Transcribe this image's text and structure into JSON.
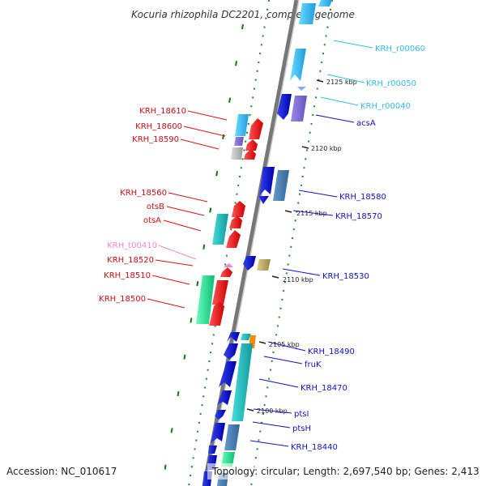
{
  "title": "Kocuria rhizophila DC2201, complete genome",
  "accession": "Accession: NC_010617",
  "summary": "Topology: circular; Length: 2,697,540 bp; Genes: 2,413",
  "colors": {
    "red": "#ee1111",
    "blue": "#1111cc",
    "cyan": "#33bbee",
    "pink": "#ee88cc",
    "backbone": "#888888",
    "dots": "#228822"
  },
  "ticks": [
    "2125 kbp",
    "2120 kbp",
    "2115 kbp",
    "2110 kbp",
    "2105 kbp",
    "2100 kbp"
  ],
  "left_labels": [
    "KRH_18610",
    "KRH_18600",
    "KRH_18590",
    "KRH_18560",
    "otsB",
    "otsA",
    "KRH_t00410",
    "KRH_18520",
    "KRH_18510",
    "KRH_18500"
  ],
  "right_labels": [
    "KRH_r00060",
    "KRH_r00050",
    "KRH_r00040",
    "acsA",
    "KRH_18580",
    "KRH_18570",
    "KRH_18530",
    "KRH_18490",
    "fruK",
    "KRH_18470",
    "ptsI",
    "ptsH",
    "KRH_18440"
  ]
}
